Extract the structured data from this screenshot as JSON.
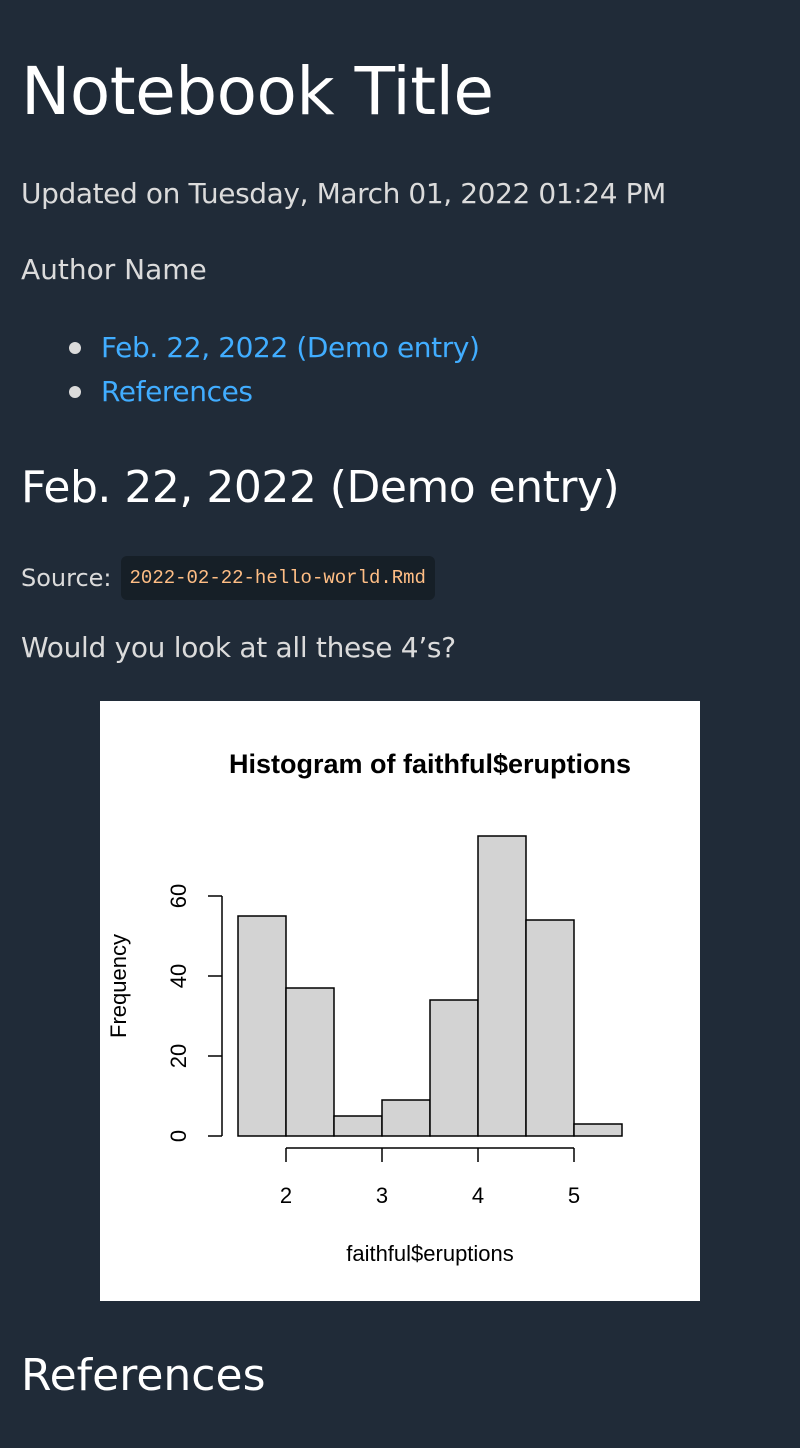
{
  "notebook": {
    "title": "Notebook Title",
    "updated": "Updated on Tuesday, March 01, 2022 01:24 PM",
    "author": "Author Name"
  },
  "toc": {
    "items": [
      {
        "label": "Feb. 22, 2022 (Demo entry)"
      },
      {
        "label": "References"
      }
    ]
  },
  "entry": {
    "heading": "Feb. 22, 2022 (Demo entry)",
    "source_label": "Source:",
    "source_file": "2022-02-22-hello-world.Rmd",
    "paragraph": "Would you look at all these 4’s?"
  },
  "references": {
    "heading": "References"
  },
  "colors": {
    "background": "#202b38",
    "link": "#41adff",
    "code": "#ffbe85",
    "bar_fill": "#d3d3d3"
  },
  "chart_data": {
    "type": "bar",
    "title": "Histogram of faithful$eruptions",
    "xlabel": "faithful$eruptions",
    "ylabel": "Frequency",
    "bins": [
      [
        1.5,
        2.0
      ],
      [
        2.0,
        2.5
      ],
      [
        2.5,
        3.0
      ],
      [
        3.0,
        3.5
      ],
      [
        3.5,
        4.0
      ],
      [
        4.0,
        4.5
      ],
      [
        4.5,
        5.0
      ],
      [
        5.0,
        5.5
      ]
    ],
    "values": [
      55,
      37,
      5,
      9,
      34,
      75,
      54,
      3
    ],
    "xticks": [
      2,
      3,
      4,
      5
    ],
    "yticks": [
      0,
      20,
      40,
      60
    ],
    "xlim": [
      1.5,
      5.5
    ],
    "ylim": [
      0,
      60
    ],
    "grid": false
  }
}
